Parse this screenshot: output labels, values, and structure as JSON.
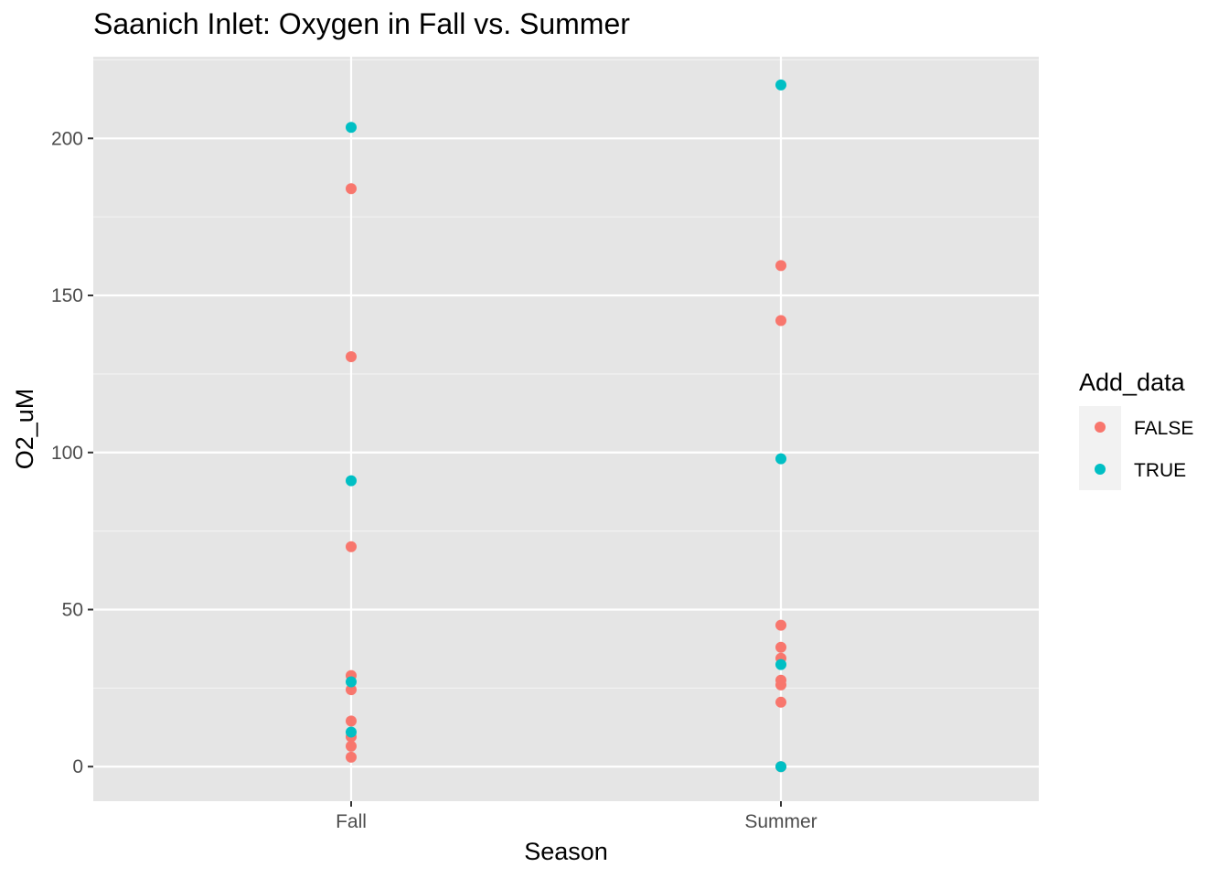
{
  "chart_data": {
    "type": "scatter",
    "title": "Saanich Inlet: Oxygen in Fall vs. Summer",
    "xlabel": "Season",
    "ylabel": "O2_uM",
    "categories": [
      "Fall",
      "Summer"
    ],
    "ylim": [
      -11,
      226
    ],
    "yticks": [
      0,
      50,
      100,
      150,
      200
    ],
    "grid": true,
    "legend": {
      "title": "Add_data",
      "placement": "right",
      "entries": [
        {
          "name": "FALSE",
          "color": "#F8766D"
        },
        {
          "name": "TRUE",
          "color": "#00BFC4"
        }
      ]
    },
    "series": [
      {
        "name": "FALSE",
        "color": "#F8766D",
        "points": [
          {
            "x": "Fall",
            "y": 184
          },
          {
            "x": "Fall",
            "y": 130.5
          },
          {
            "x": "Fall",
            "y": 70
          },
          {
            "x": "Fall",
            "y": 29
          },
          {
            "x": "Fall",
            "y": 24.5
          },
          {
            "x": "Fall",
            "y": 14.5
          },
          {
            "x": "Fall",
            "y": 9.5
          },
          {
            "x": "Fall",
            "y": 6.5
          },
          {
            "x": "Fall",
            "y": 3
          },
          {
            "x": "Summer",
            "y": 159.5
          },
          {
            "x": "Summer",
            "y": 142
          },
          {
            "x": "Summer",
            "y": 45
          },
          {
            "x": "Summer",
            "y": 38
          },
          {
            "x": "Summer",
            "y": 34.5
          },
          {
            "x": "Summer",
            "y": 27.5
          },
          {
            "x": "Summer",
            "y": 26
          },
          {
            "x": "Summer",
            "y": 20.5
          },
          {
            "x": "Summer",
            "y": 0
          }
        ]
      },
      {
        "name": "TRUE",
        "color": "#00BFC4",
        "points": [
          {
            "x": "Fall",
            "y": 203.5
          },
          {
            "x": "Fall",
            "y": 91
          },
          {
            "x": "Fall",
            "y": 27
          },
          {
            "x": "Fall",
            "y": 11
          },
          {
            "x": "Summer",
            "y": 217
          },
          {
            "x": "Summer",
            "y": 98
          },
          {
            "x": "Summer",
            "y": 32.5
          },
          {
            "x": "Summer",
            "y": 0
          }
        ]
      }
    ]
  }
}
